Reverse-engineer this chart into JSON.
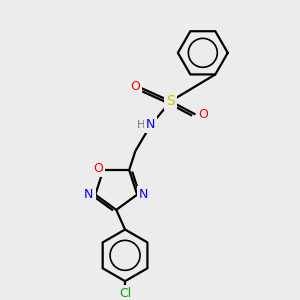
{
  "background_color": "#ececec",
  "bond_color": "#000000",
  "line_width": 1.6,
  "atom_colors": {
    "N": "#0000ff",
    "O": "#ff0000",
    "S": "#cccc00",
    "Cl": "#00aa00",
    "H": "#777777",
    "C": "#000000"
  },
  "font_size": 9,
  "fig_width": 3.0,
  "fig_height": 3.0,
  "dpi": 100,
  "xlim": [
    0,
    10
  ],
  "ylim": [
    0,
    10
  ]
}
